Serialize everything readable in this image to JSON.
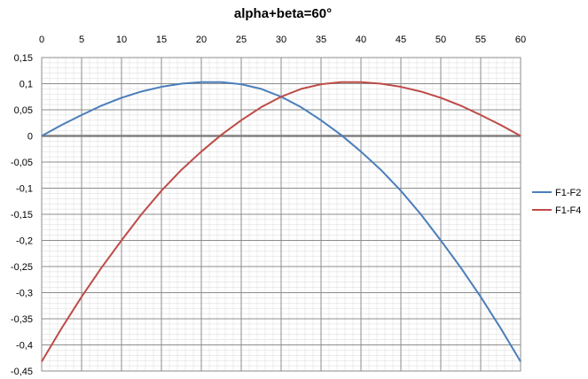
{
  "chart_data": {
    "type": "line",
    "title": "alpha+beta=60°",
    "xlabel": "",
    "ylabel": "",
    "xlim": [
      0,
      60
    ],
    "ylim": [
      -0.45,
      0.15
    ],
    "x_ticks": [
      "0",
      "5",
      "10",
      "15",
      "20",
      "25",
      "30",
      "35",
      "40",
      "45",
      "50",
      "55",
      "60"
    ],
    "y_ticks": [
      "0,15",
      "0,1",
      "0,05",
      "0",
      "-0,05",
      "-0,1",
      "-0,15",
      "-0,2",
      "-0,25",
      "-0,3",
      "-0,35",
      "-0,4",
      "-0,45"
    ],
    "x_axis_position": "top",
    "grid": true,
    "legend_position": "right",
    "series": [
      {
        "name": "F1-F2",
        "color": "#4a7ebb",
        "x": [
          0,
          2.5,
          5,
          7.5,
          10,
          12.5,
          15,
          17.5,
          20,
          22.5,
          25,
          27.5,
          30,
          32.5,
          35,
          37.5,
          40,
          42.5,
          45,
          47.5,
          50,
          52.5,
          55,
          57.5,
          60
        ],
        "y": [
          0,
          0.021,
          0.04,
          0.058,
          0.073,
          0.085,
          0.094,
          0.1,
          0.103,
          0.103,
          0.099,
          0.09,
          0.075,
          0.055,
          0.03,
          0.002,
          -0.03,
          -0.065,
          -0.105,
          -0.15,
          -0.2,
          -0.252,
          -0.308,
          -0.368,
          -0.432
        ]
      },
      {
        "name": "F1-F4",
        "color": "#be4b48",
        "x": [
          0,
          2.5,
          5,
          7.5,
          10,
          12.5,
          15,
          17.5,
          20,
          22.5,
          25,
          27.5,
          30,
          32.5,
          35,
          37.5,
          40,
          42.5,
          45,
          47.5,
          50,
          52.5,
          55,
          57.5,
          60
        ],
        "y": [
          -0.432,
          -0.368,
          -0.308,
          -0.252,
          -0.2,
          -0.15,
          -0.105,
          -0.065,
          -0.03,
          0.002,
          0.03,
          0.055,
          0.075,
          0.09,
          0.099,
          0.103,
          0.103,
          0.1,
          0.094,
          0.085,
          0.073,
          0.058,
          0.04,
          0.021,
          0
        ]
      }
    ]
  }
}
